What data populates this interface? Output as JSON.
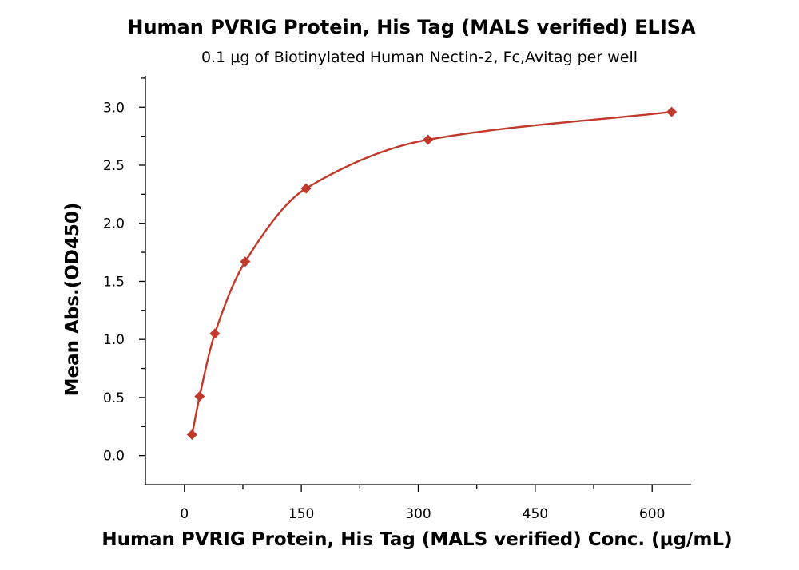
{
  "chart_data": {
    "type": "scatter",
    "title": "Human PVRIG Protein, His Tag (MALS verified) ELISA",
    "subtitle": "0.1 μg of Biotinylated Human Nectin-2, Fc,Avitag per well",
    "xlabel": "Human PVRIG Protein, His Tag (MALS verified) Conc. (μg/mL)",
    "ylabel": "Mean Abs.(OD450)",
    "xlim": [
      -50,
      650
    ],
    "ylim": [
      -0.25,
      3.27
    ],
    "x_ticks": [
      0,
      150,
      300,
      450,
      600
    ],
    "x_tick_labels": [
      "0",
      "150",
      "300",
      "450",
      "600"
    ],
    "y_ticks": [
      0.0,
      0.5,
      1.0,
      1.5,
      2.0,
      2.5,
      3.0
    ],
    "y_tick_labels": [
      "0.0",
      "0.5",
      "1.0",
      "1.5",
      "2.0",
      "2.5",
      "3.0"
    ],
    "series": [
      {
        "name": "Human PVRIG Protein, His Tag (MALS verified)",
        "marker": "diamond",
        "color": "#c0392b",
        "x": [
          9.8,
          19.5,
          39,
          78,
          156,
          312.5,
          625
        ],
        "y": [
          0.18,
          0.51,
          1.05,
          1.67,
          2.3,
          2.72,
          2.96
        ],
        "fit": "saturation curve"
      }
    ]
  }
}
